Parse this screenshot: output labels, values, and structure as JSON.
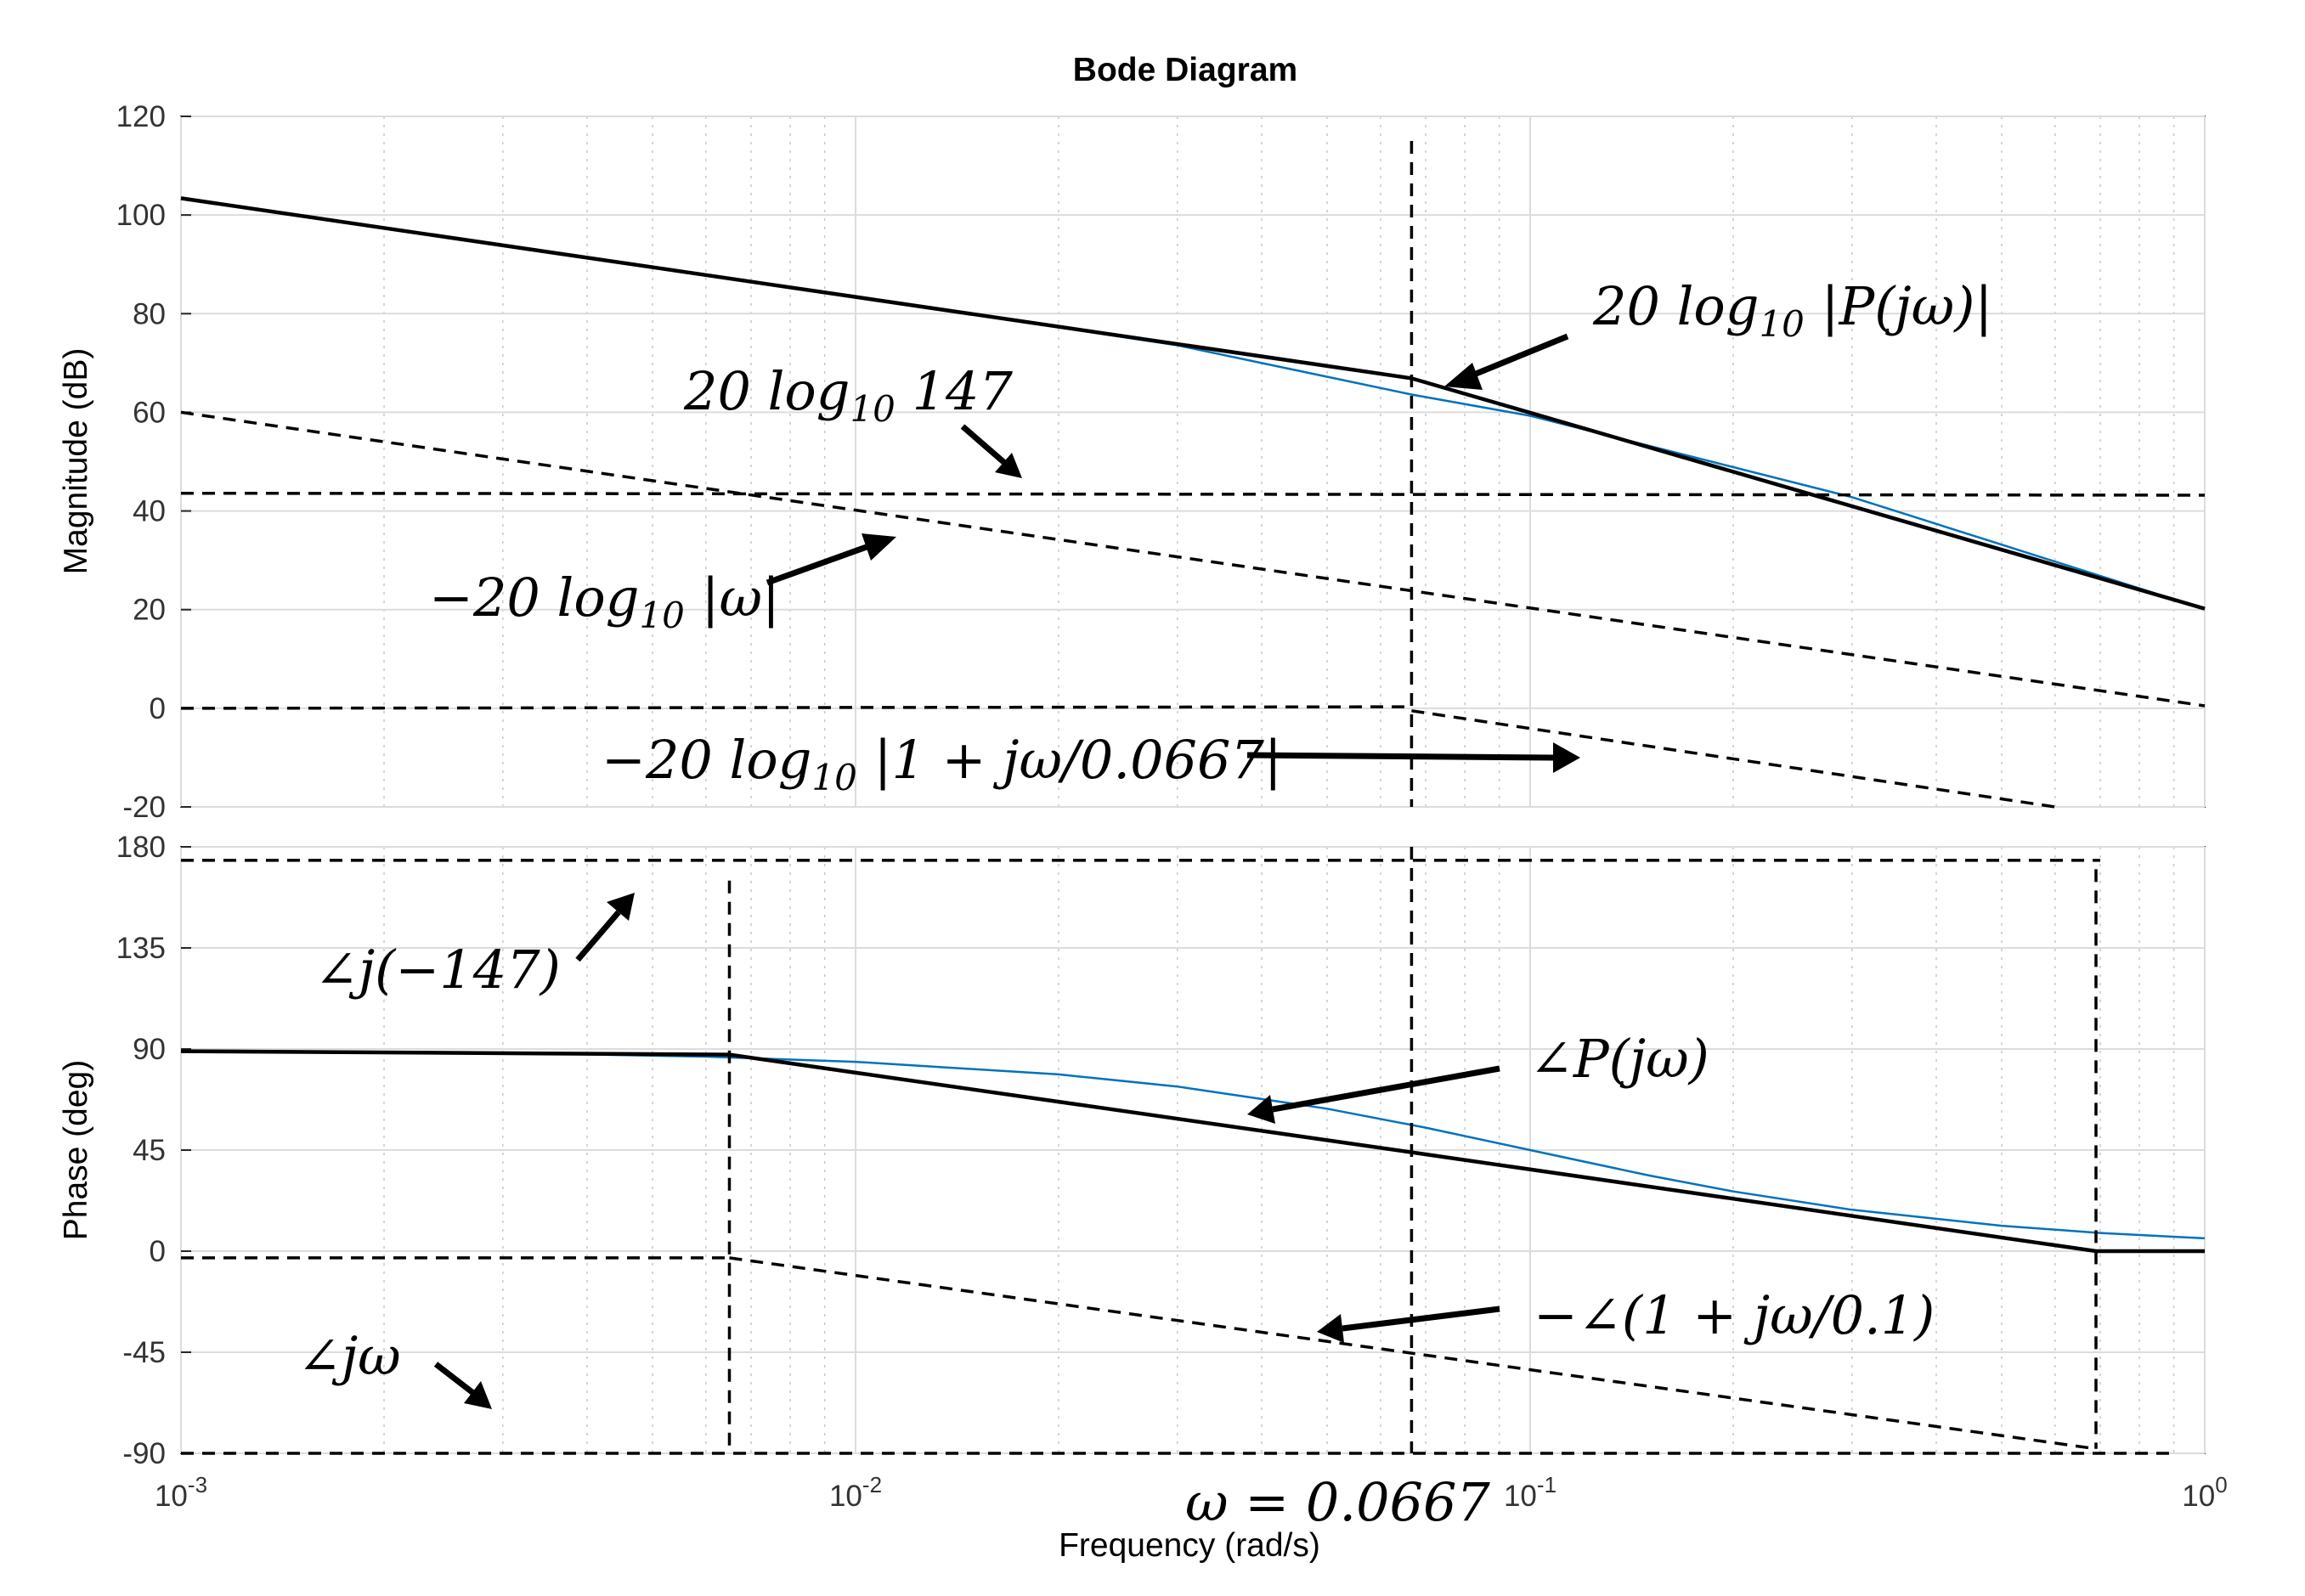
{
  "title": "Bode Diagram",
  "chart_data": {
    "type": "line",
    "title": "Bode Diagram",
    "xlabel": "Frequency  (rad/s)",
    "x_scale": "log",
    "xlim": [
      0.001,
      1
    ],
    "x_ticks": [
      {
        "value": 0.001,
        "base": "10",
        "exp": "-3"
      },
      {
        "value": 0.01,
        "base": "10",
        "exp": "-2"
      },
      {
        "value": 0.1,
        "base": "10",
        "exp": "-1"
      },
      {
        "value": 1,
        "base": "10",
        "exp": "0"
      }
    ],
    "grid": true,
    "panels": [
      {
        "id": "magnitude",
        "ylabel": "Magnitude (dB)",
        "ylim": [
          -20,
          120
        ],
        "y_ticks": [
          "120",
          "100",
          "80",
          "60",
          "40",
          "20",
          "0",
          "-20"
        ],
        "series": [
          {
            "style": "exact",
            "color": "#0072BD",
            "points": [
              [
                0.001,
                103.4
              ],
              [
                0.01,
                83.4
              ],
              [
                0.03,
                73.6
              ],
              [
                0.0667,
                63.6
              ],
              [
                0.1,
                59.3
              ],
              [
                0.3,
                42.8
              ],
              [
                1.0,
                20.1
              ]
            ]
          },
          {
            "style": "asymptote",
            "color": "#000000",
            "points": [
              [
                0.001,
                103.4
              ],
              [
                0.0667,
                66.9
              ],
              [
                1.0,
                20.2
              ]
            ]
          },
          {
            "style": "dashed",
            "points": [
              [
                0.001,
                43.6
              ],
              [
                1.0,
                43.2
              ]
            ]
          },
          {
            "style": "dashed",
            "points": [
              [
                0.001,
                60.0
              ],
              [
                1.0,
                0.5
              ]
            ]
          },
          {
            "style": "dashed",
            "points": [
              [
                0.001,
                0.0
              ],
              [
                0.0667,
                0.3
              ]
            ]
          },
          {
            "style": "dashed",
            "points": [
              [
                0.0667,
                -0.5
              ],
              [
                0.6,
                -20.0
              ]
            ]
          },
          {
            "style": "dashed",
            "points": [
              [
                0.0667,
                115
              ],
              [
                0.0667,
                -20
              ]
            ]
          }
        ]
      },
      {
        "id": "phase",
        "ylabel": "Phase (deg)",
        "ylim": [
          -90,
          180
        ],
        "y_ticks": [
          "180",
          "135",
          "90",
          "45",
          "0",
          "-45",
          "-90"
        ],
        "series": [
          {
            "style": "exact",
            "color": "#0072BD",
            "points": [
              [
                0.001,
                89.4
              ],
              [
                0.003,
                88.3
              ],
              [
                0.006,
                86.6
              ],
              [
                0.01,
                84.3
              ],
              [
                0.02,
                78.7
              ],
              [
                0.03,
                73.3
              ],
              [
                0.05,
                63.4
              ],
              [
                0.07,
                55.0
              ],
              [
                0.1,
                45.0
              ],
              [
                0.15,
                33.7
              ],
              [
                0.2,
                26.6
              ],
              [
                0.3,
                18.4
              ],
              [
                0.5,
                11.3
              ],
              [
                0.7,
                8.1
              ],
              [
                1.0,
                5.7
              ]
            ]
          },
          {
            "style": "asymptote",
            "color": "#000000",
            "points": [
              [
                0.001,
                89.0
              ],
              [
                0.0065,
                87.5
              ],
              [
                0.0667,
                44.0
              ],
              [
                0.69,
                0.0
              ],
              [
                1.0,
                0.0
              ]
            ]
          },
          {
            "style": "dashed",
            "points": [
              [
                0.001,
                174
              ],
              [
                0.7,
                174
              ]
            ]
          },
          {
            "style": "dashed",
            "points": [
              [
                0.001,
                -3
              ],
              [
                0.0065,
                -3
              ]
            ]
          },
          {
            "style": "dashed",
            "points": [
              [
                0.0065,
                -3
              ],
              [
                0.69,
                -88
              ]
            ]
          },
          {
            "style": "dashed",
            "points": [
              [
                0.001,
                -90
              ],
              [
                0.9,
                -90
              ]
            ]
          },
          {
            "style": "dashed",
            "points": [
              [
                0.0065,
                165
              ],
              [
                0.0065,
                -90
              ]
            ]
          },
          {
            "style": "dashed",
            "points": [
              [
                0.69,
                170
              ],
              [
                0.69,
                -88
              ]
            ]
          },
          {
            "style": "dashed",
            "points": [
              [
                0.0667,
                180
              ],
              [
                0.0667,
                -90
              ]
            ]
          }
        ]
      }
    ]
  },
  "annotations": {
    "mag_P": {
      "prefix": "20 log",
      "sub": "10",
      "suffix": " |P(jω)|"
    },
    "mag_147": {
      "prefix": "20 log",
      "sub": "10",
      "suffix": " 147"
    },
    "mag_omega": {
      "prefix": "−20 log",
      "sub": "10",
      "suffix": " |ω|"
    },
    "mag_pole": {
      "prefix": "−20 log",
      "sub": "10",
      "suffix": " |1 + jω/0.0667|"
    },
    "ph_147": "∠j(−147)",
    "ph_P": "∠P(jω)",
    "ph_pole": "−∠(1 + jω/0.1)",
    "ph_jw": "∠jω",
    "omega_marker": "ω = 0.0667"
  }
}
